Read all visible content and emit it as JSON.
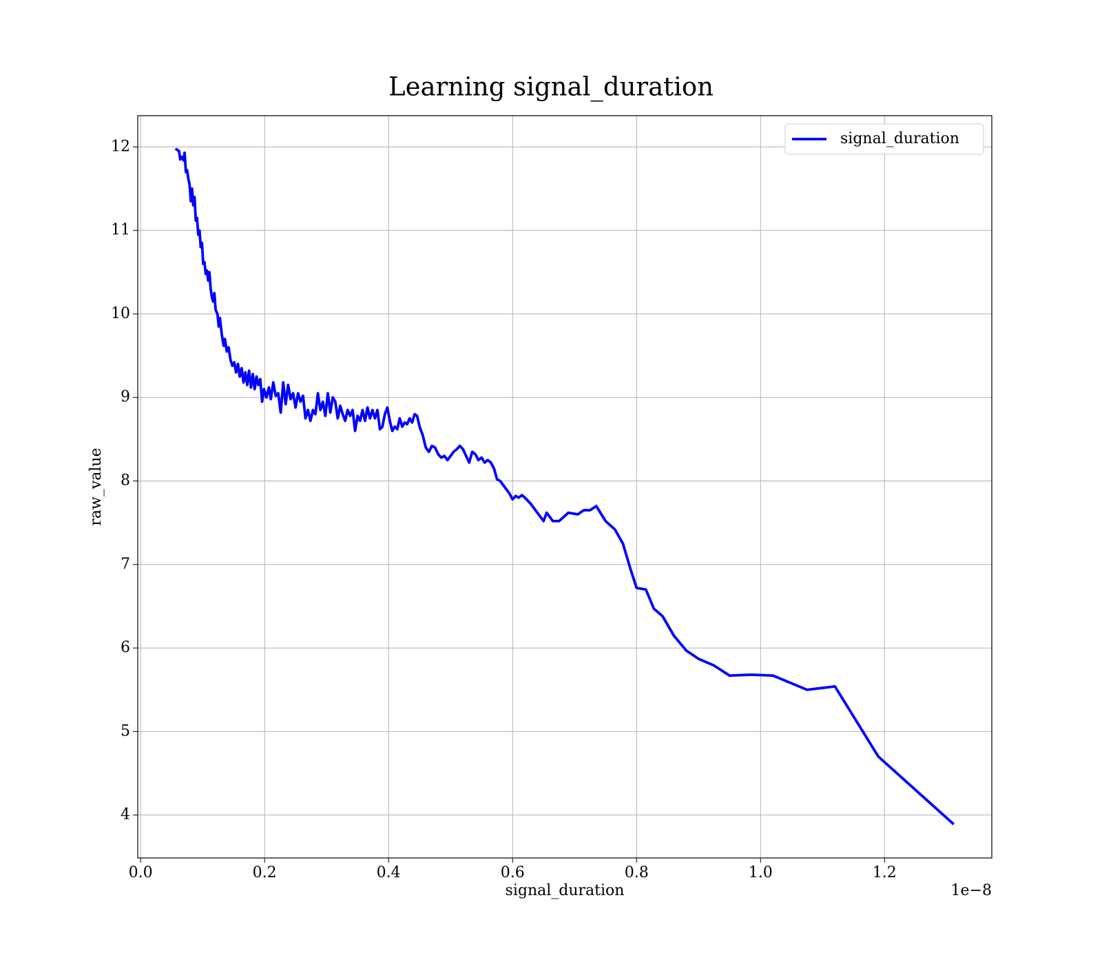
{
  "chart_data": {
    "type": "line",
    "title": "Learning signal_duration",
    "x_label": "signal_duration",
    "y_label": "raw_value",
    "x_offset_label": "1e−8",
    "x": [
      0.058,
      0.062,
      0.064,
      0.067,
      0.069,
      0.071,
      0.073,
      0.075,
      0.077,
      0.079,
      0.081,
      0.083,
      0.085,
      0.087,
      0.089,
      0.091,
      0.093,
      0.095,
      0.097,
      0.099,
      0.101,
      0.103,
      0.105,
      0.107,
      0.109,
      0.111,
      0.113,
      0.115,
      0.117,
      0.119,
      0.121,
      0.124,
      0.126,
      0.128,
      0.131,
      0.134,
      0.136,
      0.139,
      0.142,
      0.145,
      0.148,
      0.151,
      0.154,
      0.157,
      0.16,
      0.163,
      0.166,
      0.169,
      0.172,
      0.175,
      0.178,
      0.181,
      0.184,
      0.187,
      0.19,
      0.193,
      0.196,
      0.199,
      0.203,
      0.207,
      0.21,
      0.214,
      0.218,
      0.222,
      0.226,
      0.23,
      0.234,
      0.238,
      0.242,
      0.246,
      0.25,
      0.254,
      0.258,
      0.262,
      0.266,
      0.27,
      0.274,
      0.278,
      0.282,
      0.286,
      0.29,
      0.294,
      0.298,
      0.302,
      0.306,
      0.31,
      0.314,
      0.318,
      0.322,
      0.326,
      0.33,
      0.334,
      0.338,
      0.342,
      0.346,
      0.35,
      0.354,
      0.358,
      0.362,
      0.366,
      0.37,
      0.374,
      0.378,
      0.382,
      0.386,
      0.39,
      0.394,
      0.398,
      0.402,
      0.406,
      0.41,
      0.414,
      0.418,
      0.422,
      0.426,
      0.43,
      0.434,
      0.438,
      0.442,
      0.446,
      0.45,
      0.455,
      0.46,
      0.465,
      0.47,
      0.475,
      0.48,
      0.485,
      0.49,
      0.495,
      0.5,
      0.505,
      0.51,
      0.515,
      0.52,
      0.525,
      0.53,
      0.535,
      0.54,
      0.545,
      0.55,
      0.555,
      0.56,
      0.565,
      0.57,
      0.575,
      0.58,
      0.585,
      0.59,
      0.595,
      0.6,
      0.605,
      0.61,
      0.615,
      0.62,
      0.63,
      0.64,
      0.65,
      0.655,
      0.665,
      0.675,
      0.69,
      0.705,
      0.715,
      0.725,
      0.735,
      0.75,
      0.765,
      0.778,
      0.79,
      0.8,
      0.815,
      0.828,
      0.842,
      0.86,
      0.88,
      0.9,
      0.925,
      0.95,
      0.985,
      1.02,
      1.075,
      1.12,
      1.19,
      1.31
    ],
    "series": [
      {
        "name": "signal_duration",
        "color": "#0000ff",
        "values": [
          11.97,
          11.95,
          11.85,
          11.88,
          11.84,
          11.93,
          11.7,
          11.72,
          11.62,
          11.55,
          11.35,
          11.5,
          11.3,
          11.4,
          11.12,
          11.15,
          10.95,
          11.0,
          10.8,
          10.85,
          10.6,
          10.62,
          10.48,
          10.52,
          10.4,
          10.5,
          10.3,
          10.2,
          10.15,
          10.25,
          10.05,
          10.0,
          9.85,
          9.95,
          9.75,
          9.62,
          9.7,
          9.55,
          9.6,
          9.45,
          9.38,
          9.42,
          9.3,
          9.4,
          9.25,
          9.35,
          9.18,
          9.3,
          9.15,
          9.32,
          9.12,
          9.28,
          9.1,
          9.25,
          9.15,
          9.22,
          8.95,
          9.1,
          9.0,
          9.12,
          8.98,
          9.18,
          9.02,
          9.05,
          8.82,
          9.18,
          8.92,
          9.15,
          8.98,
          9.05,
          8.88,
          9.05,
          8.95,
          9.02,
          8.75,
          8.85,
          8.72,
          8.85,
          8.8,
          9.05,
          8.85,
          8.95,
          8.78,
          9.05,
          8.82,
          9.0,
          8.95,
          8.75,
          8.9,
          8.8,
          8.72,
          8.85,
          8.78,
          8.85,
          8.6,
          8.78,
          8.72,
          8.85,
          8.72,
          8.88,
          8.75,
          8.85,
          8.75,
          8.85,
          8.62,
          8.65,
          8.8,
          8.88,
          8.72,
          8.6,
          8.65,
          8.62,
          8.75,
          8.65,
          8.7,
          8.68,
          8.75,
          8.7,
          8.8,
          8.78,
          8.65,
          8.55,
          8.4,
          8.35,
          8.42,
          8.4,
          8.32,
          8.28,
          8.3,
          8.25,
          8.3,
          8.35,
          8.38,
          8.42,
          8.38,
          8.3,
          8.22,
          8.35,
          8.32,
          8.25,
          8.28,
          8.22,
          8.25,
          8.22,
          8.15,
          8.02,
          8.0,
          7.95,
          7.9,
          7.85,
          7.78,
          7.82,
          7.8,
          7.83,
          7.8,
          7.72,
          7.62,
          7.52,
          7.62,
          7.52,
          7.52,
          7.62,
          7.6,
          7.65,
          7.65,
          7.7,
          7.52,
          7.42,
          7.25,
          6.95,
          6.72,
          6.7,
          6.47,
          6.38,
          6.15,
          5.97,
          5.87,
          5.79,
          5.67,
          5.68,
          5.67,
          5.5,
          5.54,
          4.7,
          3.9
        ]
      }
    ],
    "xlim": [
      -0.0046,
      1.373
    ],
    "ylim": [
      3.486,
      12.374
    ],
    "xticks": [
      {
        "value": 0,
        "label": "0.0"
      },
      0.2,
      0.4,
      0.6,
      0.8,
      {
        "value": 1,
        "label": "1.0"
      },
      1.2
    ],
    "yticks": [
      4,
      5,
      6,
      7,
      8,
      9,
      10,
      11,
      12
    ],
    "grid": true,
    "legend": "upper right"
  }
}
